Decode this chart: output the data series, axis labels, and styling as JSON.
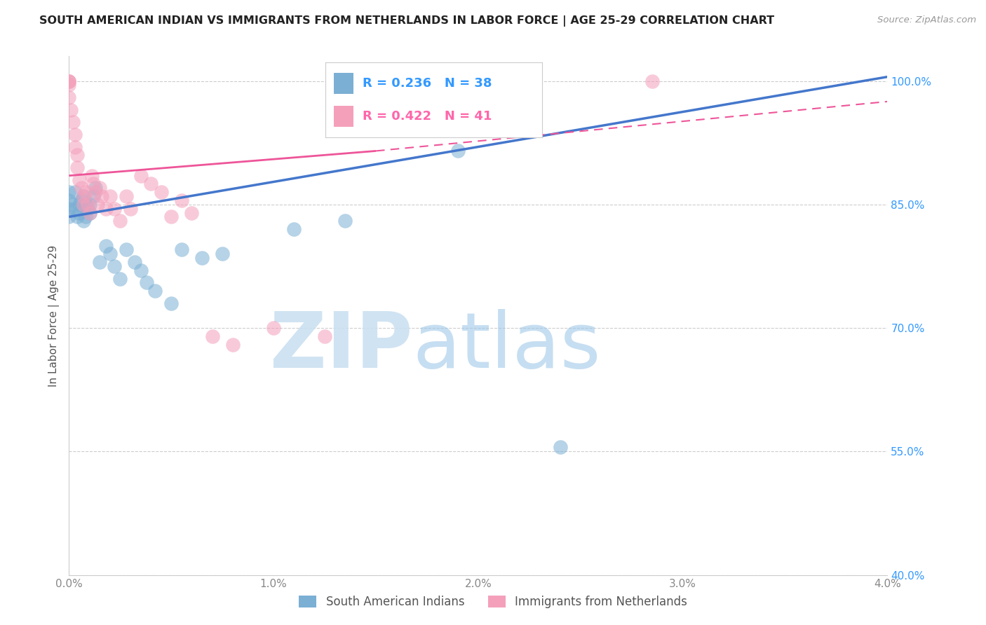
{
  "title": "SOUTH AMERICAN INDIAN VS IMMIGRANTS FROM NETHERLANDS IN LABOR FORCE | AGE 25-29 CORRELATION CHART",
  "source": "Source: ZipAtlas.com",
  "ylabel": "In Labor Force | Age 25-29",
  "xlim": [
    0.0,
    4.0
  ],
  "ylim": [
    40.0,
    103.0
  ],
  "yticks": [
    40.0,
    55.0,
    70.0,
    85.0,
    100.0
  ],
  "xticks": [
    0.0,
    1.0,
    2.0,
    3.0,
    4.0
  ],
  "blue_R": 0.236,
  "blue_N": 38,
  "pink_R": 0.422,
  "pink_N": 41,
  "blue_label": "South American Indians",
  "pink_label": "Immigrants from Netherlands",
  "blue_color": "#7bafd4",
  "pink_color": "#f4a0bb",
  "blue_scatter_x": [
    0.0,
    0.0,
    0.0,
    0.0,
    0.02,
    0.03,
    0.03,
    0.04,
    0.05,
    0.05,
    0.06,
    0.07,
    0.07,
    0.08,
    0.08,
    0.09,
    0.1,
    0.1,
    0.12,
    0.13,
    0.15,
    0.18,
    0.2,
    0.22,
    0.25,
    0.28,
    0.32,
    0.35,
    0.38,
    0.42,
    0.5,
    0.55,
    0.65,
    0.75,
    1.1,
    1.35,
    1.9,
    2.4
  ],
  "blue_scatter_y": [
    84.5,
    85.5,
    83.5,
    86.5,
    85.0,
    84.5,
    86.5,
    83.5,
    85.0,
    84.0,
    85.5,
    83.0,
    86.0,
    85.0,
    83.5,
    84.5,
    85.0,
    84.0,
    86.0,
    87.0,
    78.0,
    80.0,
    79.0,
    77.5,
    76.0,
    79.5,
    78.0,
    77.0,
    75.5,
    74.5,
    73.0,
    79.5,
    78.5,
    79.0,
    82.0,
    83.0,
    91.5,
    55.5
  ],
  "pink_scatter_x": [
    0.0,
    0.0,
    0.0,
    0.0,
    0.0,
    0.01,
    0.02,
    0.03,
    0.03,
    0.04,
    0.04,
    0.05,
    0.06,
    0.07,
    0.07,
    0.08,
    0.09,
    0.1,
    0.11,
    0.12,
    0.13,
    0.14,
    0.15,
    0.16,
    0.18,
    0.2,
    0.22,
    0.25,
    0.28,
    0.3,
    0.35,
    0.4,
    0.45,
    0.5,
    0.55,
    0.6,
    0.7,
    0.8,
    1.0,
    1.25,
    2.85
  ],
  "pink_scatter_y": [
    100.0,
    100.0,
    100.0,
    99.5,
    98.0,
    96.5,
    95.0,
    93.5,
    92.0,
    91.0,
    89.5,
    88.0,
    87.0,
    86.0,
    85.0,
    86.5,
    85.0,
    84.0,
    88.5,
    87.5,
    86.5,
    85.0,
    87.0,
    86.0,
    84.5,
    86.0,
    84.5,
    83.0,
    86.0,
    84.5,
    88.5,
    87.5,
    86.5,
    83.5,
    85.5,
    84.0,
    69.0,
    68.0,
    70.0,
    69.0,
    100.0
  ],
  "blue_line_x0": 0.0,
  "blue_line_y0": 83.5,
  "blue_line_x1": 4.0,
  "blue_line_y1": 100.5,
  "pink_line_x0": 0.0,
  "pink_line_y0": 88.5,
  "pink_line_x1": 4.0,
  "pink_line_y1": 97.5,
  "pink_line_dashed_x0": 1.5,
  "pink_line_dashed_y0": 91.5,
  "pink_line_dashed_x1": 4.0,
  "pink_line_dashed_y1": 97.5,
  "watermark_zip": "ZIP",
  "watermark_atlas": "atlas",
  "background_color": "#ffffff",
  "grid_color": "#cccccc",
  "legend_blue_text_color": "#3399ff",
  "legend_pink_text_color": "#ff66aa",
  "ytick_color": "#3399ff",
  "xtick_color": "#888888",
  "title_color": "#222222",
  "source_color": "#999999",
  "ylabel_color": "#555555"
}
